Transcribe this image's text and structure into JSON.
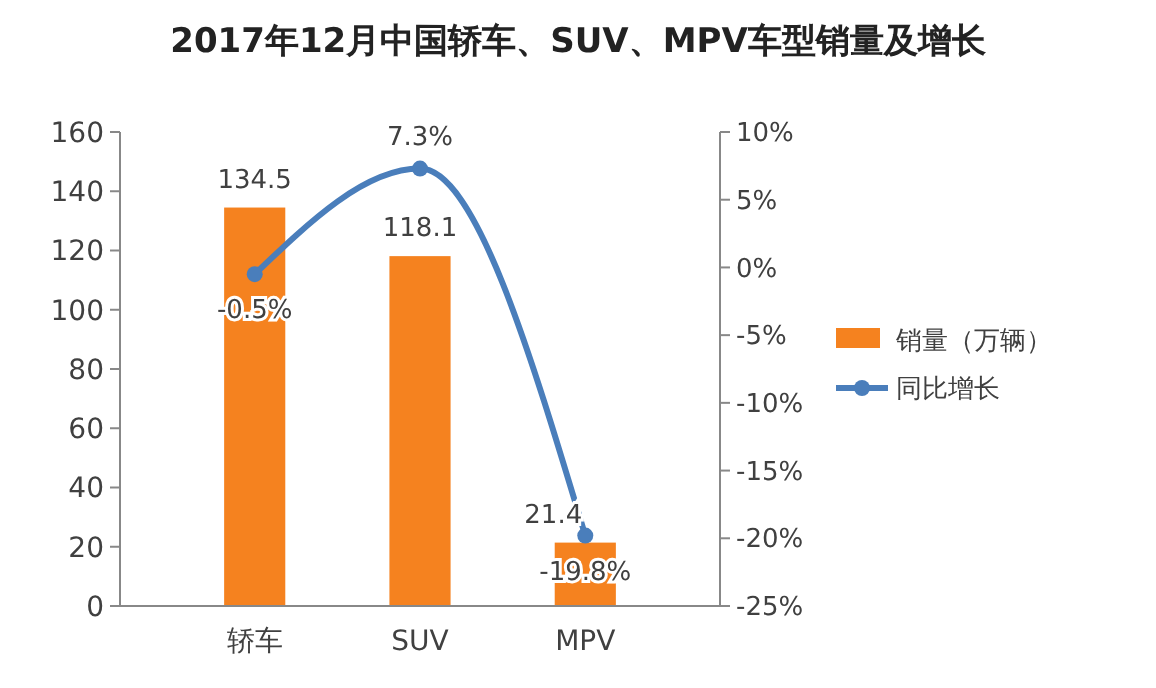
{
  "chart_data": {
    "type": "bar",
    "title": "2017年12月中国轿车、SUV、MPV车型销量及增长",
    "categories": [
      "轿车",
      "SUV",
      "MPV"
    ],
    "series": [
      {
        "name": "销量（万辆）",
        "color": "#f5821f",
        "values": [
          134.5,
          118.1,
          21.4
        ],
        "value_labels": [
          "134.5",
          "118.1",
          "21.4"
        ]
      },
      {
        "name": "同比增长",
        "type": "line",
        "axis": "y2",
        "color": "#4a7ebb",
        "values": [
          -0.5,
          7.3,
          -19.8
        ],
        "value_labels": [
          "-0.5%",
          "7.3%",
          "-19.8%"
        ]
      }
    ],
    "ylim": [
      0,
      160
    ],
    "yticks": [
      0,
      20,
      40,
      60,
      80,
      100,
      120,
      140,
      160
    ],
    "y2lim": [
      -25,
      10
    ],
    "y2ticks": [
      {
        "value": -25,
        "label": "-25%"
      },
      {
        "value": -20,
        "label": "-20%"
      },
      {
        "value": -15,
        "label": "-15%"
      },
      {
        "value": -10,
        "label": "-10%"
      },
      {
        "value": -5,
        "label": "-5%"
      },
      {
        "value": 0,
        "label": "0%"
      },
      {
        "value": 5,
        "label": "5%"
      },
      {
        "value": 10,
        "label": "10%"
      }
    ],
    "legend": "right",
    "grid": false,
    "marker": "circle"
  }
}
